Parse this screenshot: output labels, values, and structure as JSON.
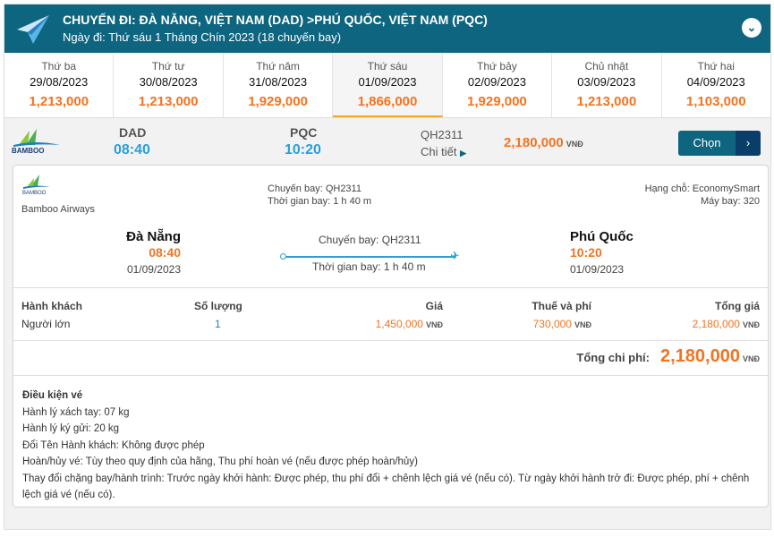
{
  "header": {
    "title": "CHUYẾN ĐI: ĐÀ NẴNG, VIỆT NAM (DAD) >PHÚ QUỐC, VIỆT NAM (PQC)",
    "subtitle": "Ngày đi: Thứ sáu 1 Tháng Chín 2023 (18 chuyến bay)",
    "toggle_icon": "chevron-down-icon"
  },
  "dates": [
    {
      "day": "Thứ ba",
      "date": "29/08/2023",
      "price": "1,213,000"
    },
    {
      "day": "Thứ tư",
      "date": "30/08/2023",
      "price": "1,213,000"
    },
    {
      "day": "Thứ năm",
      "date": "31/08/2023",
      "price": "1,929,000"
    },
    {
      "day": "Thứ sáu",
      "date": "01/09/2023",
      "price": "1,866,000",
      "selected": true
    },
    {
      "day": "Thứ bảy",
      "date": "02/09/2023",
      "price": "1,929,000"
    },
    {
      "day": "Chủ nhật",
      "date": "03/09/2023",
      "price": "1,213,000"
    },
    {
      "day": "Thứ hai",
      "date": "04/09/2023",
      "price": "1,103,000"
    }
  ],
  "flight": {
    "from": "DAD",
    "to": "PQC",
    "depart": "08:40",
    "arrive": "10:20",
    "number": "QH2311",
    "details": "Chi tiết",
    "price": "2,180,000",
    "currency": "VNĐ",
    "select": "Chọn"
  },
  "detail": {
    "airline": "Bamboo Airways",
    "logo_text": "BAMBOO",
    "flight_label": "Chuyến bay: QH2311",
    "duration": "Thời gian bay: 1 h 40 m",
    "class": "Hạng chỗ: EconomySmart",
    "aircraft": "Máy bay: 320",
    "from_city": "Đà Nẵng",
    "from_time": "08:40",
    "from_date": "01/09/2023",
    "to_city": "Phú Quốc",
    "to_time": "10:20",
    "to_date": "01/09/2023"
  },
  "fare": {
    "headers": [
      "Hành khách",
      "Số lượng",
      "Giá",
      "Thuế và phí",
      "Tổng giá"
    ],
    "row": {
      "pax": "Người lớn",
      "qty": "1",
      "price": "1,450,000",
      "tax": "730,000",
      "total": "2,180,000"
    },
    "currency": "VNĐ",
    "grand_label": "Tổng chi phí:",
    "grand_total": "2,180,000"
  },
  "conditions": {
    "title": "Điều kiện vé",
    "lines": [
      "Hành lý xách tay: 07 kg",
      "Hành lý ký gửi: 20 kg",
      "Đổi Tên Hành khách: Không được phép",
      "Hoàn/hủy vé: Tùy theo quy định của hãng, Thu phí hoàn vé (nếu được phép hoàn/hủy)",
      "Thay đổi chặng bay/hành trình: Trước ngày khởi hành: Được phép, thu phí đổi + chênh lệch giá vé (nếu có). Từ ngày khởi hành trở đi: Được phép, phí + chênh lệch giá vé (nếu có)."
    ]
  },
  "colors": {
    "header": "#0e6580",
    "price": "#f47321",
    "time": "#2a9fd8"
  }
}
